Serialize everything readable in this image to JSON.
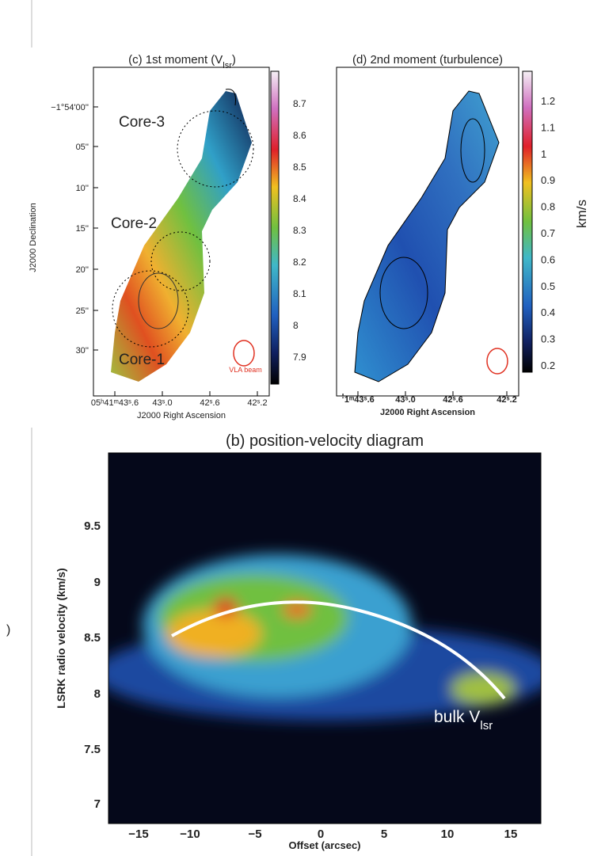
{
  "panel_c": {
    "title": "(c) 1st moment (V",
    "title_sub": "lsr",
    "title_tail": ")",
    "yticks": [
      "−1°54'00''",
      "05''",
      "10''",
      "15''",
      "20''",
      "25''",
      "30''"
    ],
    "xticks": [
      "05ʰ41ᵐ43ˢ.6",
      "43ˢ.0",
      "42ˢ.6",
      "42ˢ.2"
    ],
    "xlabel": "J2000 Right Ascension",
    "ylabel": "J2000 Declination",
    "colorbar": [
      "8.7",
      "8.6",
      "8.5",
      "8.4",
      "8.3",
      "8.2",
      "8.1",
      "8",
      "7.9"
    ],
    "cores": [
      "Core-3",
      "Core-2",
      "Core-1"
    ],
    "beam": "VLA beam"
  },
  "panel_d": {
    "title": "(d) 2nd moment (turbulence)",
    "xticks": [
      "ꜝ1ᵐ43ˢ.6",
      "43ˢ.0",
      "42ˢ.6",
      "42ˢ.2"
    ],
    "xlabel": "J2000 Right Ascension",
    "colorbar": [
      "1.2",
      "1.1",
      "1",
      "0.9",
      "0.8",
      "0.7",
      "0.6",
      "0.5",
      "0.4",
      "0.3",
      "0.2"
    ],
    "colorbar_label": "km/s"
  },
  "panel_b": {
    "title": "(b) position-velocity diagram",
    "yticks": [
      "9.5",
      "9",
      "8.5",
      "8",
      "7.5",
      "7"
    ],
    "xticks": [
      "−15",
      "−10",
      "−5",
      "0",
      "5",
      "10",
      "15"
    ],
    "xlabel": "Offset (arcsec)",
    "ylabel": "LSRK radio velocity  (km/s)",
    "annotation": "bulk V",
    "annotation_sub": "lsr"
  },
  "stray": ")"
}
